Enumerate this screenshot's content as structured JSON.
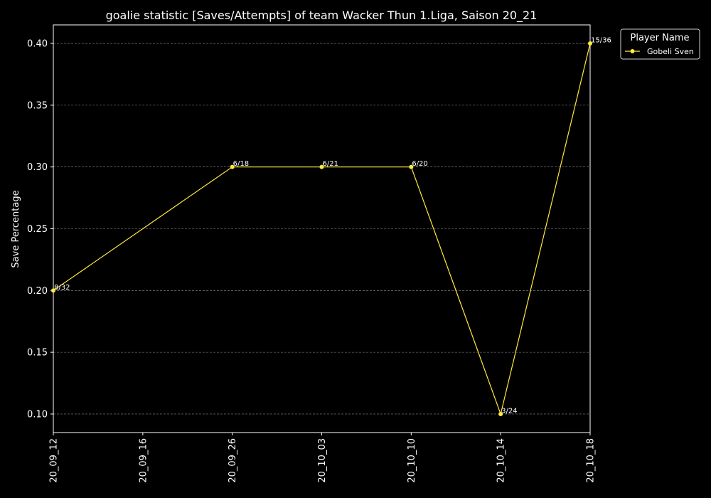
{
  "chart_data": {
    "type": "line",
    "title": "goalie statistic [Saves/Attempts] of team Wacker Thun 1.Liga, Saison 20_21",
    "xlabel": "",
    "ylabel": "Save Percentage",
    "categories": [
      "20_09_12",
      "20_09_16",
      "20_09_26",
      "20_10_03",
      "20_10_10",
      "20_10_14",
      "20_10_18"
    ],
    "yticks": [
      "0.10",
      "0.15",
      "0.20",
      "0.25",
      "0.30",
      "0.35",
      "0.40"
    ],
    "ylim": [
      0.085,
      0.415
    ],
    "grid": true,
    "legend": {
      "title": "Player Name",
      "placement": "outside-top-right"
    },
    "series": [
      {
        "name": "Gobeli Sven",
        "color": "#ffeb3b",
        "points": [
          {
            "x": "20_09_12",
            "y": 0.2,
            "label": "8/32"
          },
          {
            "x": "20_09_26",
            "y": 0.3,
            "label": "6/18"
          },
          {
            "x": "20_10_03",
            "y": 0.3,
            "label": "6/21"
          },
          {
            "x": "20_10_10",
            "y": 0.3,
            "label": "6/20"
          },
          {
            "x": "20_10_14",
            "y": 0.1,
            "label": "3/24"
          },
          {
            "x": "20_10_18",
            "y": 0.4,
            "label": "15/36"
          }
        ]
      }
    ]
  }
}
